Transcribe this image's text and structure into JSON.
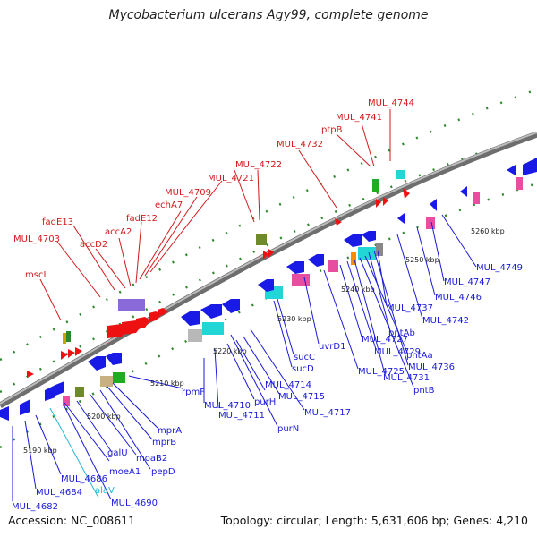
{
  "title": "Mycobacterium ulcerans Agy99, complete genome",
  "accession_text": "Accession: NC_008611",
  "summary_text": "Topology: circular; Length: 5,631,606 bp; Genes: 4,210",
  "colors": {
    "backbone": "#8a8a8a",
    "forward_gene": "#ee1111",
    "reverse_gene": "#1a1ae6",
    "highlight_label": "#27b8d6"
  },
  "scale_ticks": [
    {
      "label": "5190 kbp"
    },
    {
      "label": "5200 kbp"
    },
    {
      "label": "5210 kbp"
    },
    {
      "label": "5220 kbp"
    },
    {
      "label": "5230 kbp"
    },
    {
      "label": "5240 kbp"
    },
    {
      "label": "5250 kbp"
    },
    {
      "label": "5260 kbp"
    }
  ],
  "labels_top": [
    {
      "text": "mscL"
    },
    {
      "text": "MUL_4703"
    },
    {
      "text": "fadE13"
    },
    {
      "text": "accD2"
    },
    {
      "text": "accA2"
    },
    {
      "text": "fadE12"
    },
    {
      "text": "echA7"
    },
    {
      "text": "MUL_4709"
    },
    {
      "text": "MUL_4721"
    },
    {
      "text": "MUL_4722"
    },
    {
      "text": "MUL_4732"
    },
    {
      "text": "ptpB"
    },
    {
      "text": "MUL_4741"
    },
    {
      "text": "MUL_4744"
    }
  ],
  "labels_bottom": [
    {
      "text": "MUL_4682"
    },
    {
      "text": "MUL_4684"
    },
    {
      "text": "MUL_4686"
    },
    {
      "text": "alaV"
    },
    {
      "text": "MUL_4690"
    },
    {
      "text": "moeA1"
    },
    {
      "text": "galU"
    },
    {
      "text": "moaB2"
    },
    {
      "text": "pepD"
    },
    {
      "text": "mprB"
    },
    {
      "text": "mprA"
    },
    {
      "text": "rpmF"
    },
    {
      "text": "MUL_4710"
    },
    {
      "text": "MUL_4711"
    },
    {
      "text": "purH"
    },
    {
      "text": "MUL_4714"
    },
    {
      "text": "MUL_4715"
    },
    {
      "text": "purN"
    },
    {
      "text": "MUL_4717"
    },
    {
      "text": "sucD"
    },
    {
      "text": "sucC"
    },
    {
      "text": "uvrD1"
    },
    {
      "text": "MUL_4725"
    },
    {
      "text": "MUL_4727"
    },
    {
      "text": "MUL_4729"
    },
    {
      "text": "MUL_4731"
    },
    {
      "text": "pntB"
    },
    {
      "text": "pntAa"
    },
    {
      "text": "pntAb"
    },
    {
      "text": "MUL_4736"
    },
    {
      "text": "MUL_4737"
    },
    {
      "text": "MUL_4742"
    },
    {
      "text": "MUL_4746"
    },
    {
      "text": "MUL_4747"
    },
    {
      "text": "MUL_4749"
    }
  ]
}
